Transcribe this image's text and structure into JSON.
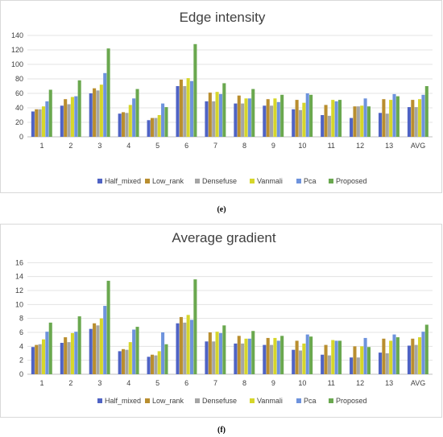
{
  "colors": [
    "#4f63c4",
    "#b98e2f",
    "#a5a5a5",
    "#d6d62b",
    "#6e93dd",
    "#6aa84f"
  ],
  "captions": [
    "(e)",
    "(f)"
  ],
  "chart_data": [
    {
      "type": "bar",
      "title": "Edge intensity",
      "ylim": [
        0,
        140
      ],
      "yticks": [
        0,
        20,
        40,
        60,
        80,
        100,
        120,
        140
      ],
      "grid": true,
      "legend": "bottom",
      "categories": [
        "1",
        "2",
        "3",
        "4",
        "5",
        "6",
        "7",
        "8",
        "9",
        "10",
        "11",
        "12",
        "13",
        "AVG"
      ],
      "series": [
        {
          "name": "Half_mixed",
          "values": [
            35,
            43,
            60,
            32,
            23,
            70,
            49,
            46,
            43,
            38,
            30,
            26,
            33,
            41
          ]
        },
        {
          "name": "Low_rank",
          "values": [
            38,
            52,
            67,
            34,
            26,
            79,
            61,
            57,
            52,
            51,
            44,
            42,
            52,
            51
          ]
        },
        {
          "name": "Densefuse",
          "values": [
            38,
            45,
            64,
            33,
            26,
            70,
            49,
            46,
            43,
            37,
            29,
            42,
            32,
            41
          ]
        },
        {
          "name": "Vanmali",
          "values": [
            42,
            55,
            72,
            44,
            30,
            81,
            62,
            53,
            53,
            47,
            51,
            43,
            51,
            52
          ]
        },
        {
          "name": "Pca",
          "values": [
            49,
            56,
            88,
            53,
            46,
            77,
            59,
            53,
            48,
            60,
            49,
            53,
            59,
            58
          ]
        },
        {
          "name": "Proposed",
          "values": [
            65,
            78,
            122,
            66,
            41,
            128,
            74,
            66,
            58,
            58,
            51,
            42,
            56,
            70
          ]
        }
      ]
    },
    {
      "type": "bar",
      "title": "Average gradient",
      "ylim": [
        0,
        18
      ],
      "yticks": [
        0,
        2,
        4,
        6,
        8,
        10,
        12,
        14,
        16
      ],
      "grid": true,
      "legend": "bottom",
      "categories": [
        "1",
        "2",
        "3",
        "4",
        "5",
        "6",
        "7",
        "8",
        "9",
        "10",
        "11",
        "12",
        "13",
        "AVG"
      ],
      "series": [
        {
          "name": "Half_mixed",
          "values": [
            3.9,
            4.5,
            6.5,
            3.3,
            2.5,
            7.3,
            4.7,
            4.4,
            4.2,
            3.5,
            2.8,
            2.4,
            3.1,
            4.1
          ]
        },
        {
          "name": "Low_rank",
          "values": [
            4.2,
            5.3,
            7.3,
            3.6,
            2.8,
            8.2,
            6.0,
            5.5,
            5.2,
            4.8,
            4.2,
            4.0,
            5.1,
            5.1
          ]
        },
        {
          "name": "Densefuse",
          "values": [
            4.3,
            4.6,
            7.0,
            3.5,
            2.7,
            7.4,
            4.7,
            4.4,
            4.2,
            3.4,
            2.7,
            2.4,
            3.0,
            4.2
          ]
        },
        {
          "name": "Vanmali",
          "values": [
            5.0,
            5.9,
            8.0,
            4.6,
            3.3,
            8.5,
            6.1,
            5.1,
            5.2,
            4.4,
            4.9,
            4.0,
            4.8,
            5.3
          ]
        },
        {
          "name": "Pca",
          "values": [
            6.1,
            6.1,
            9.8,
            6.4,
            6.0,
            7.8,
            5.9,
            5.1,
            4.8,
            5.7,
            4.8,
            5.2,
            5.7,
            6.1
          ]
        },
        {
          "name": "Proposed",
          "values": [
            7.4,
            8.3,
            13.4,
            6.8,
            4.3,
            13.6,
            7.0,
            6.2,
            5.5,
            5.4,
            4.8,
            3.9,
            5.3,
            7.1
          ]
        }
      ]
    }
  ]
}
